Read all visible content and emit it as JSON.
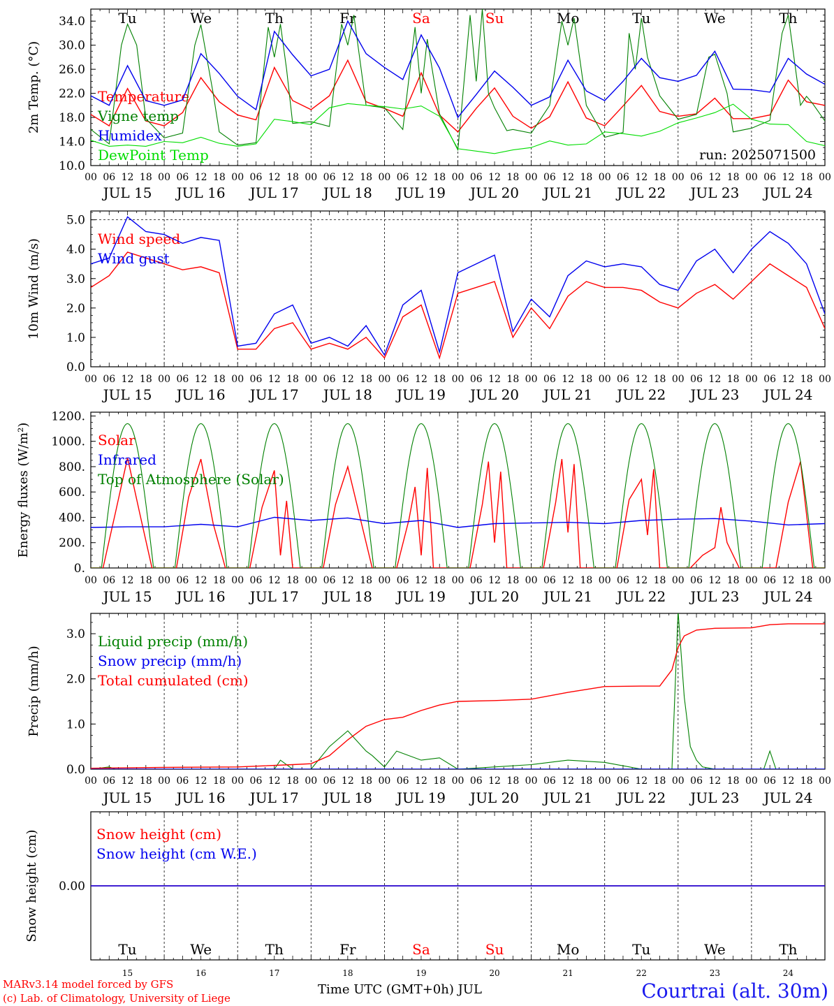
{
  "footer": {
    "model_line": "MARv3.14 model forced by GFS",
    "lab_line": "(c) Lab. of Climatology, University of Liege",
    "axis_title": "Time UTC (GMT+0h) JUL",
    "station": "Courtrai (alt. 30m)"
  },
  "timeline": {
    "days": [
      "JUL 15",
      "JUL 16",
      "JUL 17",
      "JUL 18",
      "JUL 19",
      "JUL 20",
      "JUL 21",
      "JUL 22",
      "JUL 23",
      "JUL 24"
    ],
    "weekdays": [
      "Tu",
      "We",
      "Th",
      "Fr",
      "Sa",
      "Su",
      "Mo",
      "Tu",
      "We",
      "Th"
    ],
    "weekend_color": "#ff0000",
    "hour_ticks": [
      "00",
      "06",
      "12",
      "18"
    ],
    "final_tick": "00",
    "day_numbers": [
      "15",
      "16",
      "17",
      "18",
      "19",
      "20",
      "21",
      "22",
      "23",
      "24"
    ]
  },
  "colors": {
    "red": "#ff0000",
    "green": "#008000",
    "blue": "#0000ee",
    "lightgreen": "#00dd00"
  },
  "chart_data": [
    {
      "type": "line",
      "ylabel": "2m Temp. (°C)",
      "ylim": [
        10,
        36
      ],
      "yticks": [
        "10.0",
        "14.0",
        "18.0",
        "22.0",
        "26.0",
        "30.0",
        "34.0"
      ],
      "annotation": "run: 2025071500",
      "x_unit": "hours since JUL 15 00 UTC",
      "series": [
        {
          "name": "Temperature",
          "color": "red",
          "x": [
            0,
            6,
            12,
            18,
            24,
            30,
            36,
            42,
            48,
            54,
            60,
            66,
            72,
            78,
            84,
            90,
            96,
            102,
            108,
            114,
            120,
            126,
            132,
            138,
            144,
            150,
            156,
            162,
            168,
            174,
            180,
            186,
            192,
            198,
            204,
            210,
            216,
            222,
            228,
            234,
            240
          ],
          "y": [
            18.5,
            16.6,
            22.8,
            17.4,
            16.6,
            18.8,
            24.6,
            20.6,
            18.4,
            17.6,
            26.3,
            20.8,
            19.3,
            21.6,
            27.5,
            20.6,
            19.5,
            18.2,
            25.4,
            18.4,
            15.6,
            19.5,
            22.9,
            18.2,
            16.2,
            18.1,
            23.9,
            17.9,
            16.6,
            19.9,
            23.3,
            19.0,
            18.2,
            18.6,
            21.2,
            17.8,
            17.8,
            18.4,
            24.2,
            20.6,
            20.0
          ]
        },
        {
          "name": "Vigne temp",
          "color": "green",
          "x": [
            0,
            6,
            10,
            12,
            15,
            18,
            24,
            30,
            34,
            36,
            40,
            42,
            48,
            54,
            58,
            60,
            62,
            64,
            66,
            72,
            78,
            82,
            84,
            86,
            90,
            96,
            102,
            106,
            108,
            110,
            114,
            120,
            124,
            126,
            128,
            130,
            132,
            136,
            138,
            144,
            150,
            154,
            156,
            158,
            162,
            168,
            174,
            176,
            178,
            180,
            182,
            186,
            192,
            198,
            202,
            204,
            208,
            210,
            216,
            222,
            226,
            228,
            232,
            234,
            236,
            240
          ],
          "y": [
            16.0,
            13.6,
            30.0,
            33.5,
            30.0,
            17.8,
            14.6,
            15.4,
            30.0,
            33.4,
            22.0,
            15.6,
            13.4,
            13.8,
            33.0,
            28.0,
            33.5,
            26.0,
            17.0,
            17.3,
            16.5,
            33.5,
            30.0,
            35.0,
            20.0,
            19.6,
            16.0,
            33.0,
            22.0,
            31.0,
            18.6,
            12.6,
            35.0,
            24.0,
            36.0,
            22.0,
            19.6,
            15.8,
            16.0,
            15.4,
            20.0,
            34.0,
            30.0,
            34.5,
            20.0,
            14.7,
            15.5,
            32.0,
            26.0,
            34.5,
            28.0,
            21.6,
            17.7,
            18.5,
            28.0,
            28.5,
            22.0,
            15.6,
            16.2,
            17.5,
            32.0,
            35.0,
            20.0,
            21.5,
            20.3,
            17.4
          ]
        },
        {
          "name": "Humidex",
          "color": "blue",
          "x": [
            0,
            6,
            12,
            18,
            24,
            30,
            36,
            42,
            48,
            54,
            60,
            66,
            72,
            78,
            84,
            90,
            96,
            102,
            108,
            114,
            120,
            126,
            132,
            138,
            144,
            150,
            156,
            162,
            168,
            174,
            180,
            186,
            192,
            198,
            204,
            210,
            216,
            222,
            228,
            234,
            240
          ],
          "y": [
            21.6,
            20.0,
            26.6,
            20.8,
            20.0,
            20.9,
            28.6,
            25.3,
            21.5,
            19.3,
            32.3,
            28.4,
            24.9,
            26.0,
            34.0,
            28.6,
            26.3,
            24.3,
            31.7,
            26.2,
            18.0,
            21.8,
            25.7,
            23.0,
            20.0,
            21.4,
            27.5,
            22.4,
            20.8,
            24.0,
            27.8,
            24.6,
            24.0,
            25.0,
            29.0,
            22.7,
            22.6,
            22.2,
            27.8,
            25.2,
            23.5
          ]
        },
        {
          "name": "DewPoint Temp",
          "color": "lightgreen",
          "x": [
            0,
            6,
            12,
            18,
            24,
            30,
            36,
            42,
            48,
            54,
            60,
            66,
            72,
            78,
            84,
            90,
            96,
            102,
            108,
            114,
            120,
            126,
            132,
            138,
            144,
            150,
            156,
            162,
            168,
            174,
            180,
            186,
            192,
            198,
            204,
            210,
            216,
            222,
            228,
            234,
            240
          ],
          "y": [
            14.2,
            13.2,
            13.4,
            13.2,
            14.0,
            13.8,
            14.7,
            13.7,
            13.2,
            13.6,
            17.7,
            17.3,
            16.8,
            19.6,
            20.3,
            20.0,
            19.8,
            19.4,
            19.9,
            18.2,
            12.8,
            12.4,
            12.0,
            12.6,
            13.0,
            14.1,
            13.4,
            13.6,
            15.6,
            15.3,
            14.9,
            15.7,
            17.1,
            17.9,
            18.8,
            20.2,
            17.7,
            16.9,
            16.8,
            14.0,
            13.3
          ]
        }
      ]
    },
    {
      "type": "line",
      "ylabel": "10m Wind (m/s)",
      "ylim": [
        0,
        5.3
      ],
      "yticks": [
        "0.0",
        "1.0",
        "2.0",
        "3.0",
        "4.0",
        "5.0"
      ],
      "x_unit": "hours since JUL 15 00 UTC",
      "series": [
        {
          "name": "Wind speed",
          "color": "red",
          "x": [
            0,
            6,
            12,
            18,
            24,
            30,
            36,
            42,
            48,
            54,
            60,
            66,
            72,
            78,
            84,
            90,
            96,
            102,
            108,
            114,
            120,
            126,
            132,
            138,
            144,
            150,
            156,
            162,
            168,
            174,
            180,
            186,
            192,
            198,
            204,
            210,
            216,
            222,
            228,
            234,
            240
          ],
          "y": [
            2.7,
            3.1,
            3.9,
            3.7,
            3.5,
            3.3,
            3.4,
            3.2,
            0.6,
            0.6,
            1.3,
            1.5,
            0.6,
            0.8,
            0.6,
            1.0,
            0.3,
            1.7,
            2.1,
            0.3,
            2.5,
            2.7,
            2.9,
            1.0,
            2.0,
            1.3,
            2.4,
            2.9,
            2.7,
            2.7,
            2.6,
            2.2,
            2.0,
            2.5,
            2.8,
            2.3,
            2.9,
            3.5,
            3.1,
            2.7,
            1.3
          ]
        },
        {
          "name": "Wind gust",
          "color": "blue",
          "x": [
            0,
            6,
            12,
            18,
            24,
            30,
            36,
            42,
            48,
            54,
            60,
            66,
            72,
            78,
            84,
            90,
            96,
            102,
            108,
            114,
            120,
            126,
            132,
            138,
            144,
            150,
            156,
            162,
            168,
            174,
            180,
            186,
            192,
            198,
            204,
            210,
            216,
            222,
            228,
            234,
            240
          ],
          "y": [
            3.5,
            3.7,
            5.1,
            4.6,
            4.5,
            4.2,
            4.4,
            4.3,
            0.7,
            0.8,
            1.8,
            2.1,
            0.8,
            1.0,
            0.7,
            1.4,
            0.4,
            2.1,
            2.6,
            0.5,
            3.2,
            3.5,
            3.8,
            1.2,
            2.3,
            1.7,
            3.1,
            3.6,
            3.4,
            3.5,
            3.4,
            2.8,
            2.6,
            3.6,
            4.0,
            3.2,
            4.0,
            4.6,
            4.2,
            3.5,
            1.8
          ]
        }
      ]
    },
    {
      "type": "line",
      "ylabel": "Energy fluxes (W/m²)",
      "ylim": [
        0,
        1230
      ],
      "yticks": [
        "0.",
        "200.",
        "400.",
        "600.",
        "800.",
        "1000.",
        "1200."
      ],
      "x_unit": "hours since JUL 15 00 UTC",
      "series": [
        {
          "name": "Solar",
          "color": "red",
          "x": [
            0,
            4,
            8,
            12,
            16,
            20,
            24,
            28,
            32,
            36,
            40,
            44,
            48,
            52,
            56,
            60,
            62,
            64,
            66,
            68,
            72,
            76,
            80,
            84,
            88,
            92,
            96,
            100,
            104,
            106,
            108,
            110,
            112,
            116,
            120,
            124,
            128,
            130,
            132,
            134,
            136,
            140,
            144,
            148,
            152,
            154,
            156,
            158,
            160,
            164,
            168,
            172,
            176,
            180,
            182,
            184,
            186,
            188,
            192,
            196,
            200,
            204,
            206,
            208,
            212,
            216,
            220,
            224,
            228,
            232,
            236,
            240
          ],
          "y": [
            0,
            0,
            430,
            870,
            430,
            0,
            0,
            0,
            560,
            860,
            350,
            0,
            0,
            0,
            480,
            770,
            100,
            530,
            0,
            0,
            0,
            0,
            500,
            800,
            400,
            0,
            0,
            0,
            380,
            640,
            100,
            790,
            0,
            0,
            0,
            0,
            500,
            840,
            200,
            760,
            0,
            0,
            0,
            0,
            520,
            860,
            280,
            820,
            0,
            0,
            0,
            0,
            540,
            700,
            260,
            780,
            0,
            0,
            0,
            0,
            100,
            160,
            480,
            200,
            0,
            0,
            0,
            0,
            520,
            840,
            0,
            0
          ]
        },
        {
          "name": "Infrared",
          "color": "blue",
          "x": [
            0,
            12,
            24,
            36,
            48,
            60,
            72,
            84,
            96,
            108,
            120,
            132,
            144,
            156,
            168,
            180,
            192,
            204,
            216,
            228,
            240
          ],
          "y": [
            320,
            325,
            325,
            345,
            325,
            400,
            375,
            395,
            350,
            375,
            320,
            350,
            355,
            360,
            350,
            375,
            385,
            390,
            370,
            340,
            350
          ]
        },
        {
          "name": "Top of Atmosphere (Solar)",
          "color": "green",
          "peaks_at_hours": [
            12,
            36,
            60,
            84,
            108,
            132,
            156,
            180,
            204,
            228
          ],
          "peak_value": 1140,
          "half_width_hours": 8.5
        }
      ]
    },
    {
      "type": "line",
      "ylabel": "Precip (mm/h)",
      "ylim": [
        0,
        3.45
      ],
      "yticks": [
        "0.0",
        "1.0",
        "2.0",
        "3.0"
      ],
      "x_unit": "hours since JUL 15 00 UTC",
      "series": [
        {
          "name": "Liquid precip (mm/h)",
          "color": "green",
          "x": [
            0,
            6,
            8,
            12,
            24,
            48,
            60,
            62,
            66,
            72,
            78,
            84,
            90,
            92,
            96,
            100,
            108,
            114,
            120,
            132,
            144,
            156,
            168,
            180,
            186,
            190,
            192,
            194,
            196,
            198,
            200,
            204,
            216,
            220,
            222,
            224,
            240
          ],
          "y": [
            0,
            0.05,
            0,
            0,
            0,
            0,
            0,
            0.2,
            0,
            0,
            0.5,
            0.85,
            0.4,
            0.3,
            0.05,
            0.4,
            0.2,
            0.25,
            0,
            0.05,
            0.1,
            0.2,
            0.15,
            0,
            0,
            0,
            3.5,
            1.6,
            0.5,
            0.2,
            0.05,
            0,
            0,
            0,
            0.4,
            0,
            0
          ]
        },
        {
          "name": "Snow precip (mm/h)",
          "color": "blue",
          "x": [
            0,
            240
          ],
          "y": [
            0,
            0
          ]
        },
        {
          "name": "Total cumulated (cm)",
          "color": "red",
          "x": [
            0,
            24,
            48,
            66,
            72,
            78,
            84,
            90,
            96,
            102,
            108,
            114,
            120,
            132,
            144,
            156,
            168,
            180,
            186,
            190,
            192,
            194,
            198,
            204,
            216,
            222,
            228,
            240
          ],
          "y": [
            0.02,
            0.04,
            0.05,
            0.1,
            0.12,
            0.3,
            0.65,
            0.95,
            1.1,
            1.15,
            1.3,
            1.42,
            1.5,
            1.52,
            1.55,
            1.7,
            1.83,
            1.84,
            1.84,
            2.2,
            2.7,
            2.95,
            3.08,
            3.12,
            3.13,
            3.2,
            3.22,
            3.22
          ]
        }
      ]
    },
    {
      "type": "line",
      "ylabel": "Snow height (cm)",
      "ylim": [
        -1,
        1
      ],
      "yticks": [
        "0.00"
      ],
      "x_unit": "hours since JUL 15 00 UTC",
      "series": [
        {
          "name": "Snow height (cm)",
          "color": "red",
          "x": [
            0,
            240
          ],
          "y": [
            0,
            0
          ]
        },
        {
          "name": "Snow height (cm W.E.)",
          "color": "blue",
          "x": [
            0,
            240
          ],
          "y": [
            0,
            0
          ]
        }
      ]
    }
  ]
}
